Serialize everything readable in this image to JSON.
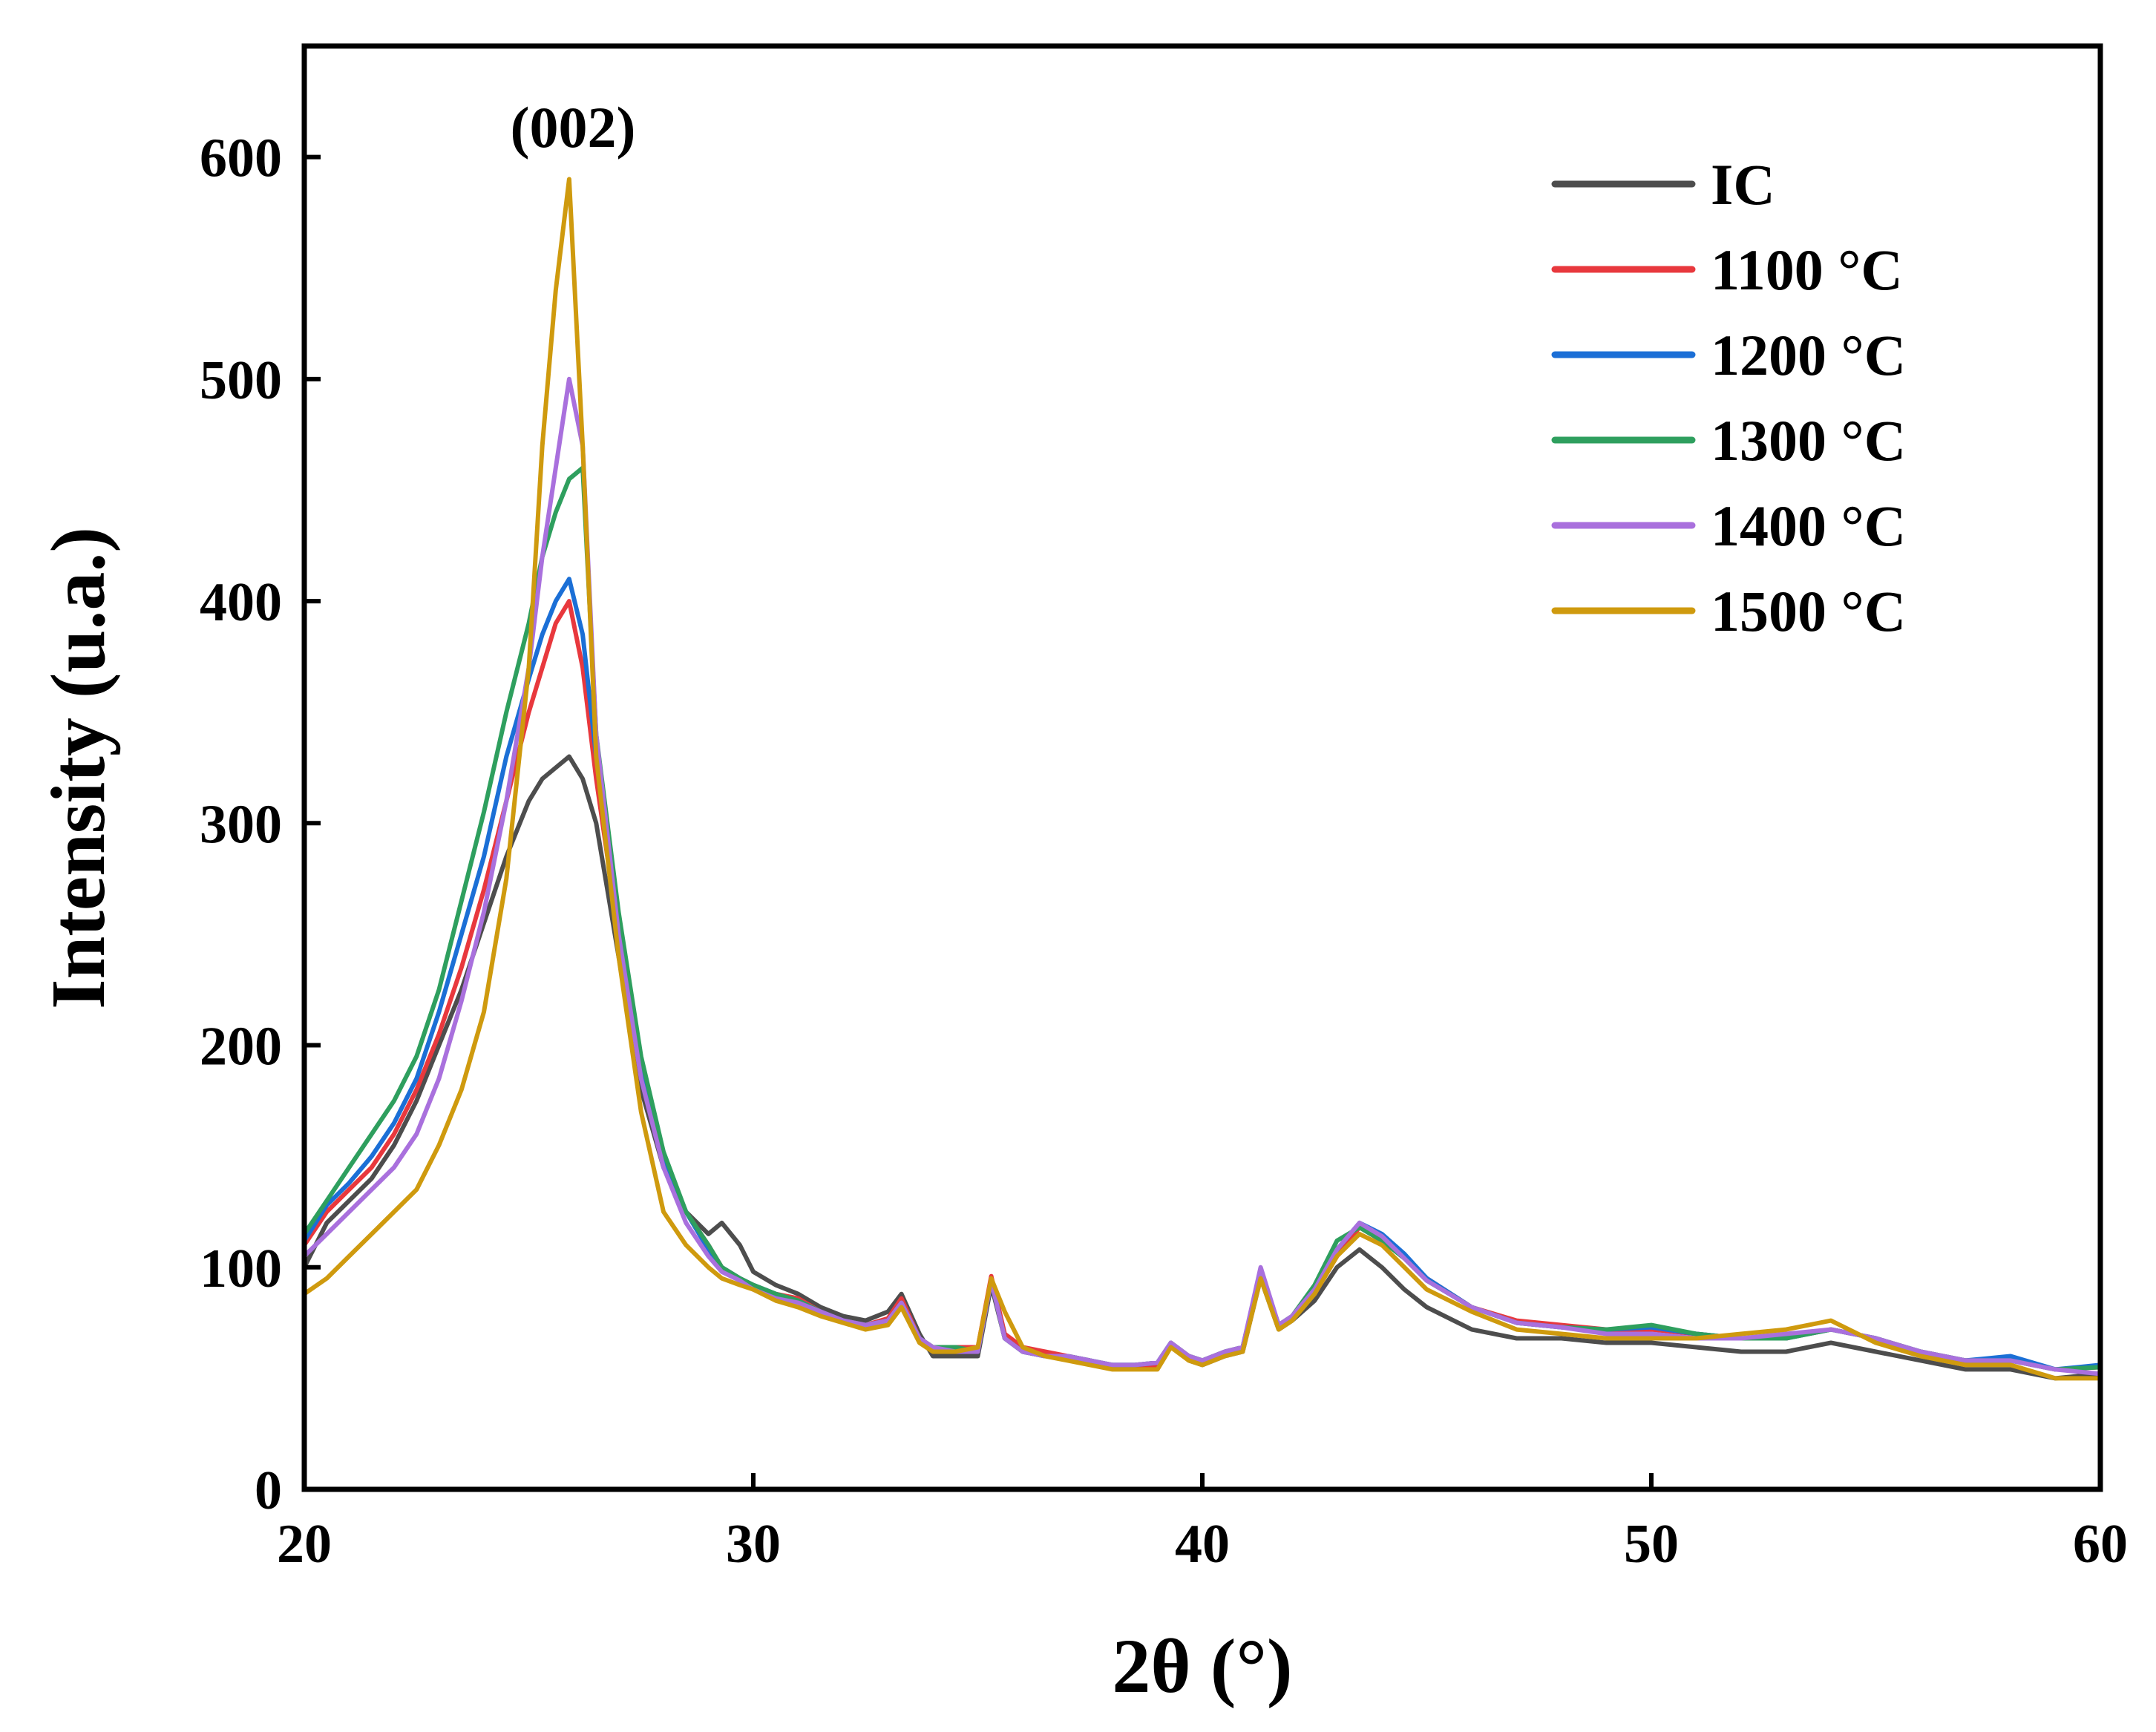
{
  "chart_data": {
    "type": "line",
    "title": "",
    "xlabel": "2θ (°)",
    "ylabel": "Intensity (u.a.)",
    "xlim": [
      20,
      60
    ],
    "ylim": [
      0,
      650
    ],
    "xticks": [
      20,
      30,
      40,
      50,
      60
    ],
    "yticks": [
      0,
      100,
      200,
      300,
      400,
      500,
      600
    ],
    "grid": false,
    "legend_position": "top-right",
    "annotations": [
      {
        "text": "(002)",
        "x": 26.0,
        "y": 610
      }
    ],
    "x": [
      20.0,
      20.5,
      21.0,
      21.5,
      22.0,
      22.5,
      23.0,
      23.5,
      24.0,
      24.5,
      25.0,
      25.3,
      25.6,
      25.9,
      26.2,
      26.5,
      27.0,
      27.5,
      28.0,
      28.5,
      29.0,
      29.3,
      29.7,
      30.0,
      30.5,
      31.0,
      31.5,
      32.0,
      32.5,
      33.0,
      33.3,
      33.7,
      34.0,
      34.5,
      35.0,
      35.3,
      35.6,
      36.0,
      36.5,
      37.0,
      37.5,
      38.0,
      38.5,
      39.0,
      39.3,
      39.7,
      40.0,
      40.5,
      40.9,
      41.3,
      41.7,
      42.0,
      42.5,
      43.0,
      43.5,
      44.0,
      44.5,
      45.0,
      46.0,
      47.0,
      48.0,
      49.0,
      50.0,
      51.0,
      52.0,
      53.0,
      54.0,
      55.0,
      56.0,
      57.0,
      58.0,
      59.0,
      60.0
    ],
    "series": [
      {
        "name": "IC",
        "color": "#4d4d4d",
        "values": [
          100,
          120,
          130,
          140,
          155,
          175,
          200,
          225,
          255,
          285,
          310,
          320,
          325,
          330,
          320,
          300,
          240,
          180,
          145,
          125,
          115,
          120,
          110,
          98,
          92,
          88,
          82,
          78,
          76,
          80,
          88,
          70,
          60,
          60,
          60,
          92,
          68,
          62,
          60,
          60,
          58,
          55,
          55,
          55,
          65,
          58,
          56,
          60,
          62,
          95,
          72,
          76,
          85,
          100,
          108,
          100,
          90,
          82,
          72,
          68,
          68,
          66,
          66,
          64,
          62,
          62,
          66,
          62,
          58,
          54,
          54,
          50,
          52
        ]
      },
      {
        "name": "1100 °C",
        "color": "#e8383d",
        "values": [
          110,
          125,
          135,
          145,
          160,
          180,
          205,
          235,
          270,
          310,
          350,
          370,
          390,
          400,
          370,
          320,
          250,
          185,
          150,
          125,
          110,
          100,
          95,
          92,
          88,
          86,
          80,
          76,
          74,
          77,
          86,
          68,
          64,
          64,
          64,
          96,
          70,
          64,
          62,
          60,
          58,
          55,
          55,
          56,
          66,
          60,
          58,
          62,
          64,
          98,
          74,
          78,
          88,
          105,
          118,
          112,
          105,
          95,
          82,
          76,
          74,
          72,
          72,
          70,
          68,
          68,
          72,
          68,
          62,
          58,
          58,
          54,
          55
        ]
      },
      {
        "name": "1200 °C",
        "color": "#1b6fd6",
        "values": [
          112,
          128,
          138,
          150,
          165,
          185,
          215,
          250,
          285,
          330,
          365,
          385,
          400,
          410,
          385,
          330,
          255,
          190,
          150,
          125,
          108,
          100,
          95,
          92,
          88,
          85,
          80,
          76,
          74,
          76,
          84,
          68,
          64,
          64,
          62,
          94,
          68,
          62,
          60,
          60,
          58,
          56,
          56,
          57,
          66,
          60,
          58,
          62,
          64,
          98,
          74,
          78,
          90,
          108,
          120,
          115,
          106,
          95,
          82,
          75,
          73,
          72,
          73,
          70,
          68,
          68,
          72,
          68,
          62,
          58,
          60,
          54,
          56
        ]
      },
      {
        "name": "1300 °C",
        "color": "#2e9f5e",
        "values": [
          115,
          130,
          145,
          160,
          175,
          195,
          225,
          265,
          305,
          350,
          390,
          420,
          440,
          455,
          460,
          340,
          260,
          195,
          152,
          125,
          110,
          100,
          95,
          92,
          88,
          85,
          80,
          76,
          74,
          76,
          84,
          68,
          64,
          64,
          62,
          94,
          68,
          62,
          60,
          60,
          58,
          56,
          56,
          57,
          66,
          60,
          58,
          62,
          64,
          98,
          74,
          78,
          92,
          112,
          118,
          112,
          104,
          94,
          82,
          75,
          73,
          72,
          74,
          70,
          68,
          68,
          72,
          68,
          62,
          58,
          58,
          54,
          55
        ]
      },
      {
        "name": "1400 °C",
        "color": "#a970dd",
        "values": [
          105,
          115,
          125,
          135,
          145,
          160,
          185,
          220,
          260,
          310,
          370,
          420,
          460,
          500,
          470,
          340,
          250,
          185,
          145,
          120,
          105,
          98,
          94,
          90,
          86,
          84,
          80,
          76,
          74,
          76,
          84,
          68,
          64,
          62,
          62,
          94,
          68,
          62,
          60,
          60,
          58,
          56,
          56,
          57,
          66,
          60,
          58,
          62,
          64,
          100,
          74,
          78,
          90,
          108,
          120,
          114,
          104,
          94,
          82,
          75,
          73,
          70,
          70,
          68,
          68,
          70,
          72,
          68,
          62,
          58,
          58,
          54,
          52
        ]
      },
      {
        "name": "1500 °C",
        "color": "#cf9a0e",
        "values": [
          88,
          95,
          105,
          115,
          125,
          135,
          155,
          180,
          215,
          275,
          370,
          470,
          540,
          590,
          470,
          330,
          240,
          170,
          125,
          110,
          100,
          95,
          92,
          90,
          85,
          82,
          78,
          75,
          72,
          74,
          82,
          66,
          62,
          62,
          64,
          95,
          80,
          64,
          60,
          58,
          56,
          54,
          54,
          54,
          64,
          58,
          56,
          60,
          62,
          95,
          72,
          76,
          88,
          105,
          115,
          110,
          100,
          90,
          80,
          72,
          70,
          68,
          68,
          68,
          70,
          72,
          76,
          66,
          60,
          56,
          56,
          50,
          50
        ]
      }
    ]
  }
}
